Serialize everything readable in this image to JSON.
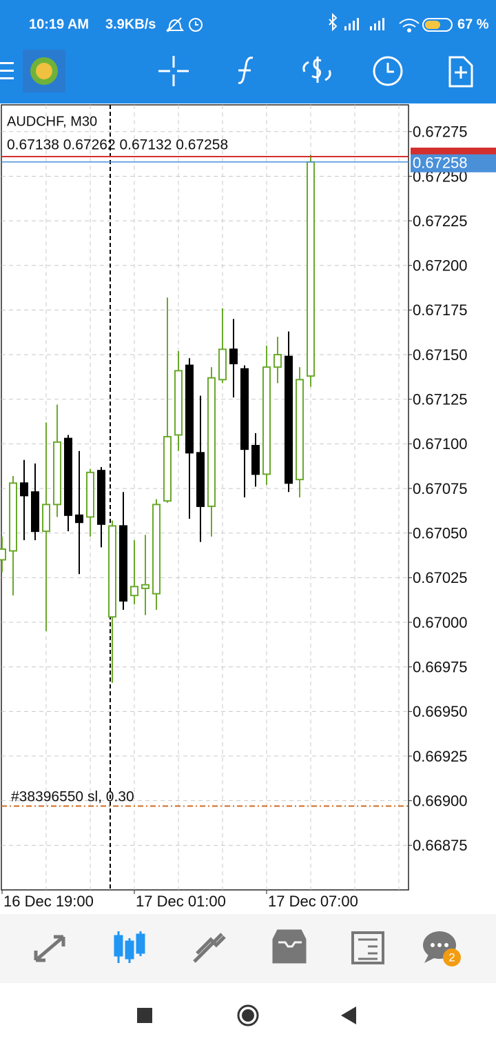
{
  "status_bar": {
    "time": "10:19 AM",
    "speed": "3.9KB/s",
    "battery": "67 %"
  },
  "tab_badge": "2",
  "chart_data": {
    "type": "candlestick",
    "title": "AUDCHF, M30",
    "info": "0.67138 0.67262 0.67132 0.67258",
    "x": [
      "16 Dec 19:00",
      null,
      null,
      null,
      null,
      null,
      null,
      null,
      null,
      null,
      null,
      null,
      "17 Dec 01:00",
      null,
      null,
      null,
      null,
      null,
      null,
      null,
      null,
      null,
      null,
      null,
      "17 Dec 07:00",
      null,
      null,
      null,
      null
    ],
    "open": [
      0.67035,
      0.6704,
      0.67078,
      0.67073,
      0.67051,
      0.67066,
      0.67103,
      0.6706,
      0.67059,
      0.67085,
      0.67003,
      0.67054,
      0.67015,
      0.67019,
      0.67016,
      0.67068,
      0.67105,
      0.67144,
      0.67095,
      0.67065,
      0.67136,
      0.67153,
      0.67142,
      0.67099,
      0.67083,
      0.67143,
      0.67149,
      0.6708,
      0.67138
    ],
    "high": [
      0.67048,
      0.67082,
      0.67091,
      0.67089,
      0.67112,
      0.67122,
      0.67105,
      0.67096,
      0.67086,
      0.67087,
      0.67057,
      0.67073,
      0.67046,
      0.67049,
      0.67069,
      0.67182,
      0.67152,
      0.67148,
      0.67127,
      0.67143,
      0.67176,
      0.6717,
      0.67144,
      0.67106,
      0.67155,
      0.6716,
      0.67163,
      0.67143,
      0.67262
    ],
    "low": [
      0.67028,
      0.67015,
      0.67046,
      0.67046,
      0.66995,
      0.67059,
      0.67051,
      0.67027,
      0.67048,
      0.67042,
      0.66966,
      0.67007,
      0.6701,
      0.67004,
      0.67007,
      0.67067,
      0.67096,
      0.67058,
      0.67045,
      0.67048,
      0.67134,
      0.67126,
      0.6707,
      0.67076,
      0.67077,
      0.67134,
      0.67073,
      0.6707,
      0.67132
    ],
    "close": [
      0.67041,
      0.67078,
      0.67071,
      0.67051,
      0.67066,
      0.67101,
      0.6706,
      0.67056,
      0.67084,
      0.67055,
      0.67054,
      0.67012,
      0.6702,
      0.67021,
      0.67066,
      0.67104,
      0.67141,
      0.67095,
      0.67065,
      0.67137,
      0.67153,
      0.67145,
      0.67097,
      0.67083,
      0.67143,
      0.6715,
      0.67078,
      0.67136,
      0.67258
    ],
    "up_color": "#6aa82a",
    "down_color": "#000000",
    "ylim": [
      0.6685,
      0.6729
    ],
    "yticks": [
      0.67275,
      {
        "value": 0.6725,
        "label": "0.67250"
      },
      0.67225,
      {
        "value": 0.672,
        "label": "0.67200"
      },
      0.67175,
      {
        "value": 0.6715,
        "label": "0.67150"
      },
      0.67125,
      {
        "value": 0.671,
        "label": "0.67100"
      },
      0.67075,
      {
        "value": 0.6705,
        "label": "0.67050"
      },
      0.67025,
      {
        "value": 0.67,
        "label": "0.67000"
      },
      0.66975,
      {
        "value": 0.6695,
        "label": "0.66950"
      },
      0.66925,
      {
        "value": 0.669,
        "label": "0.66900"
      },
      0.66875
    ],
    "grid": true,
    "ask_line": 0.67261,
    "ask_color": "#d32f2f",
    "bid_line": 0.67258,
    "bid_color": "#4a90d9",
    "order_label": "#38396550 sl, 0.30",
    "order_line": 0.66897,
    "order_color": "#d2691e"
  }
}
